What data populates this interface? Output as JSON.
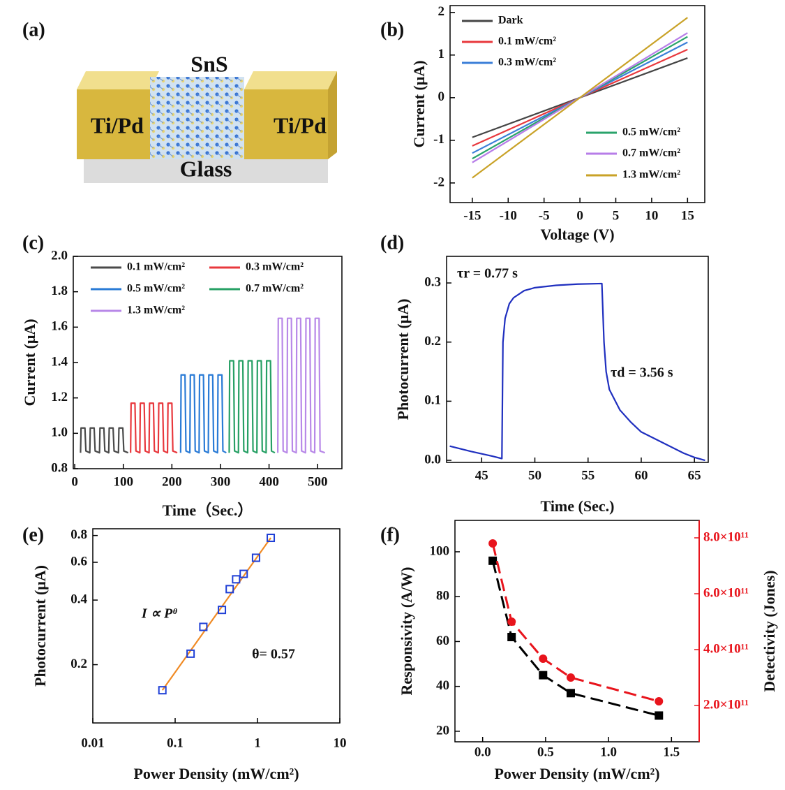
{
  "diagram": {
    "panel_label": "(a)",
    "material": "SnS",
    "left_contact": "Ti/Pd",
    "right_contact": "Ti/Pd",
    "substrate": "Glass"
  },
  "chart_data": [
    {
      "type": "line",
      "panel_label": "(b)",
      "xlabel": "Voltage (V)",
      "ylabel": "Current (μA)",
      "x": [
        -15,
        0,
        15
      ],
      "series": [
        {
          "name": "Dark",
          "color": "#454545",
          "values": [
            -0.93,
            0,
            0.93
          ]
        },
        {
          "name": "0.1 mW/cm²",
          "color": "#e8383d",
          "values": [
            -1.13,
            0,
            1.13
          ]
        },
        {
          "name": "0.3 mW/cm²",
          "color": "#3b7fd8",
          "values": [
            -1.3,
            0,
            1.3
          ]
        },
        {
          "name": "0.5 mW/cm²",
          "color": "#2aa36b",
          "values": [
            -1.43,
            0,
            1.43
          ]
        },
        {
          "name": "0.7 mW/cm²",
          "color": "#b77de8",
          "values": [
            -1.52,
            0,
            1.52
          ]
        },
        {
          "name": "1.3 mW/cm²",
          "color": "#c9a227",
          "values": [
            -1.88,
            0,
            1.88
          ]
        }
      ],
      "xlim": [
        -18.1,
        17.4
      ],
      "xticks": [
        -15,
        -10,
        -5,
        0,
        5,
        10,
        15
      ],
      "ylim": [
        -2.46,
        2.16
      ],
      "yticks": [
        -2,
        -1,
        0,
        1,
        2
      ]
    },
    {
      "type": "line",
      "panel_label": "(c)",
      "xlabel": "Time（Sec.）",
      "ylabel": "Current (μA)",
      "series": [
        {
          "name": "0.1 mW/cm²",
          "color": "#4a4a4a",
          "x": [
            12,
            13,
            21,
            23,
            31,
            32,
            40,
            42,
            51,
            52,
            60,
            62,
            70,
            71,
            79,
            81,
            90,
            91,
            99,
            101,
            110
          ],
          "values": [
            0.89,
            1.03,
            1.03,
            0.9,
            0.89,
            1.03,
            1.03,
            0.9,
            0.89,
            1.03,
            1.03,
            0.9,
            0.89,
            1.03,
            1.03,
            0.9,
            0.89,
            1.03,
            1.03,
            0.9,
            0.89
          ]
        },
        {
          "name": "0.3 mW/cm²",
          "color": "#e8383d",
          "x": [
            115,
            116,
            124,
            126,
            134,
            135,
            143,
            145,
            153,
            154,
            162,
            164,
            172,
            173,
            181,
            183,
            191,
            192,
            200,
            202,
            211
          ],
          "values": [
            0.89,
            1.17,
            1.17,
            0.9,
            0.89,
            1.17,
            1.17,
            0.9,
            0.89,
            1.17,
            1.17,
            0.9,
            0.89,
            1.17,
            1.17,
            0.9,
            0.89,
            1.17,
            1.17,
            0.9,
            0.89
          ]
        },
        {
          "name": "0.5 mW/cm²",
          "color": "#2a7bd6",
          "x": [
            218,
            219,
            227,
            229,
            237,
            238,
            246,
            248,
            256,
            257,
            265,
            267,
            275,
            276,
            284,
            286,
            294,
            295,
            303,
            305,
            312
          ],
          "values": [
            0.89,
            1.33,
            1.33,
            0.9,
            0.89,
            1.33,
            1.33,
            0.9,
            0.89,
            1.33,
            1.33,
            0.9,
            0.89,
            1.33,
            1.33,
            0.9,
            0.89,
            1.33,
            1.33,
            0.9,
            0.89
          ]
        },
        {
          "name": "0.7 mW/cm²",
          "color": "#27a065",
          "x": [
            318,
            319,
            327,
            329,
            337,
            338,
            346,
            348,
            356,
            357,
            365,
            367,
            375,
            376,
            384,
            386,
            394,
            395,
            403,
            405,
            412
          ],
          "values": [
            0.89,
            1.41,
            1.41,
            0.9,
            0.89,
            1.41,
            1.41,
            0.9,
            0.89,
            1.41,
            1.41,
            0.9,
            0.89,
            1.41,
            1.41,
            0.9,
            0.89,
            1.41,
            1.41,
            0.9,
            0.89
          ]
        },
        {
          "name": "1.3 mW/cm²",
          "color": "#b888e8",
          "x": [
            418,
            419,
            427,
            429,
            437,
            438,
            446,
            448,
            456,
            457,
            465,
            467,
            475,
            476,
            484,
            486,
            494,
            495,
            503,
            505,
            515
          ],
          "values": [
            0.89,
            1.65,
            1.65,
            0.9,
            0.89,
            1.65,
            1.65,
            0.9,
            0.89,
            1.65,
            1.65,
            0.9,
            0.89,
            1.65,
            1.65,
            0.9,
            0.89,
            1.65,
            1.65,
            0.9,
            0.89
          ]
        }
      ],
      "xlim": [
        -3,
        550
      ],
      "xticks": [
        0,
        100,
        200,
        300,
        400,
        500
      ],
      "ylim": [
        0.8,
        2.0
      ],
      "yticks": [
        0.8,
        {
          "value": 1,
          "label": "1.0"
        },
        1.2,
        1.4,
        1.6,
        1.8,
        {
          "value": 2,
          "label": "2.0"
        }
      ]
    },
    {
      "type": "line",
      "panel_label": "(d)",
      "xlabel": "Time (Sec.)",
      "ylabel": "Photocurrent (μA)",
      "annotations": [
        "τr = 0.77 s",
        "τd = 3.56 s"
      ],
      "series": [
        {
          "color": "#1f2fbf",
          "x": [
            42,
            44,
            46,
            46.9,
            47,
            47.2,
            47.6,
            48,
            49,
            50,
            52,
            54,
            56.3,
            56.5,
            56.7,
            57,
            58,
            59,
            60,
            62,
            64,
            65,
            66
          ],
          "values": [
            0.024,
            0.015,
            0.007,
            0.003,
            0.2,
            0.24,
            0.265,
            0.275,
            0.287,
            0.292,
            0.296,
            0.298,
            0.299,
            0.2,
            0.15,
            0.12,
            0.085,
            0.065,
            0.048,
            0.03,
            0.012,
            0.005,
            0
          ]
        }
      ],
      "xlim": [
        41.7,
        66.3
      ],
      "xticks": [
        45,
        50,
        55,
        60,
        65
      ],
      "ylim": [
        -0.0035,
        0.345
      ],
      "yticks": [
        {
          "value": 0,
          "label": "0.0"
        },
        0.1,
        0.2,
        0.3
      ]
    },
    {
      "type": "scatter",
      "panel_label": "(e)",
      "xlabel": "Power Density (mW/cm²)",
      "ylabel": "Photocurrent (μA)",
      "annotations": [
        "I ∝ Pᶿ",
        "θ= 0.57"
      ],
      "xlog": true,
      "ylog": true,
      "series": [
        {
          "color": "#f08a24",
          "x": [
            0.07,
            1.45
          ],
          "values": [
            0.152,
            0.78
          ]
        },
        {
          "color": "#1f3fd6",
          "marker": "square",
          "line": false,
          "x": [
            0.07,
            0.154,
            0.22,
            0.37,
            0.46,
            0.55,
            0.68,
            0.96,
            1.45
          ],
          "values": [
            0.152,
            0.225,
            0.3,
            0.36,
            0.45,
            0.5,
            0.53,
            0.63,
            0.78
          ]
        }
      ],
      "xlim": [
        0.01,
        10
      ],
      "xticks": [
        0.01,
        0.1,
        1,
        10
      ],
      "ylim": [
        0.107,
        0.86
      ],
      "yticks": [
        0.2,
        0.4,
        0.6,
        0.8
      ]
    },
    {
      "type": "line",
      "panel_label": "(f)",
      "xlabel": "Power Density (mW/cm²)",
      "ylabel": "Responsivity (A/W)",
      "y2label": "Detectivity (Jones)",
      "y2_color": "#e8141c",
      "x": [
        0.08,
        0.23,
        0.48,
        0.7,
        1.4
      ],
      "series": [
        {
          "color": "#000000",
          "marker": "square",
          "dash": true,
          "values": [
            96,
            62,
            45,
            37,
            27
          ]
        },
        {
          "color": "#e8141c",
          "marker": "circle",
          "dash": true,
          "axis": "y2",
          "values": [
            780000000000,
            500000000000,
            367500000000,
            300000000000,
            215000000000
          ]
        }
      ],
      "xlim": [
        -0.22,
        1.72
      ],
      "xticks": [
        {
          "value": 0,
          "label": "0.0"
        },
        0.5,
        {
          "value": 1,
          "label": "1.0"
        },
        1.5
      ],
      "ylim": [
        15.3,
        114
      ],
      "yticks": [
        20,
        40,
        60,
        80,
        100
      ],
      "y2lim": [
        70000000000,
        862500000000
      ],
      "y2ticks": [
        {
          "value": 200000000000,
          "label": "2.0×10¹¹"
        },
        {
          "value": 400000000000,
          "label": "4.0×10¹¹"
        },
        {
          "value": 600000000000,
          "label": "6.0×10¹¹"
        },
        {
          "value": 800000000000,
          "label": "8.0×10¹¹"
        }
      ]
    }
  ]
}
